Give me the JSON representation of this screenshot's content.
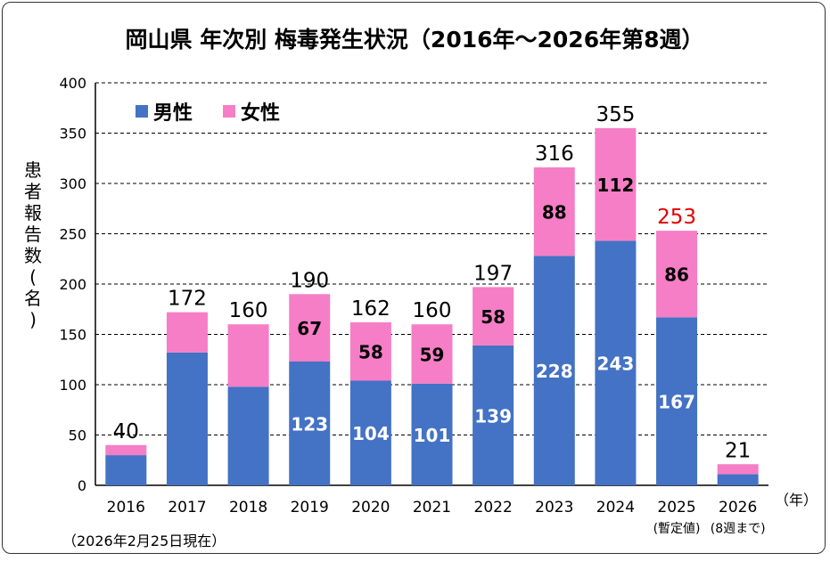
{
  "chart_data": {
    "type": "bar",
    "stacked": true,
    "title": "岡山県 年次別 梅毒発生状況（2016年～2026年第8週）",
    "ylabel": "患者報告数(名)",
    "xlabel": "（年）",
    "note": "（2026年2月25日現在）",
    "ylim": [
      0,
      400
    ],
    "yticks": [
      0,
      50,
      100,
      150,
      200,
      250,
      300,
      350,
      400
    ],
    "grid": true,
    "legend_placement": "top-left",
    "categories": [
      "2016",
      "2017",
      "2018",
      "2019",
      "2020",
      "2021",
      "2022",
      "2023",
      "2024",
      "2025",
      "2026"
    ],
    "category_sublabels": [
      "",
      "",
      "",
      "",
      "",
      "",
      "",
      "",
      "",
      "(暫定値)",
      "(8週まで)"
    ],
    "series": [
      {
        "name": "男性",
        "color": "#4472C4",
        "values": [
          30,
          132,
          98,
          123,
          104,
          101,
          139,
          228,
          243,
          167,
          11
        ],
        "labels": [
          "",
          "",
          "",
          "123",
          "104",
          "101",
          "139",
          "228",
          "243",
          "167",
          ""
        ]
      },
      {
        "name": "女性",
        "color": "#F57EC6",
        "values": [
          10,
          40,
          62,
          67,
          58,
          59,
          58,
          88,
          112,
          86,
          10
        ],
        "labels": [
          "",
          "",
          "",
          "67",
          "58",
          "59",
          "58",
          "88",
          "112",
          "86",
          ""
        ]
      }
    ],
    "totals": [
      40,
      172,
      160,
      190,
      162,
      160,
      197,
      316,
      355,
      253,
      21
    ],
    "total_colors": [
      "#000",
      "#000",
      "#000",
      "#000",
      "#000",
      "#000",
      "#000",
      "#000",
      "#000",
      "#E00000",
      "#000"
    ]
  }
}
